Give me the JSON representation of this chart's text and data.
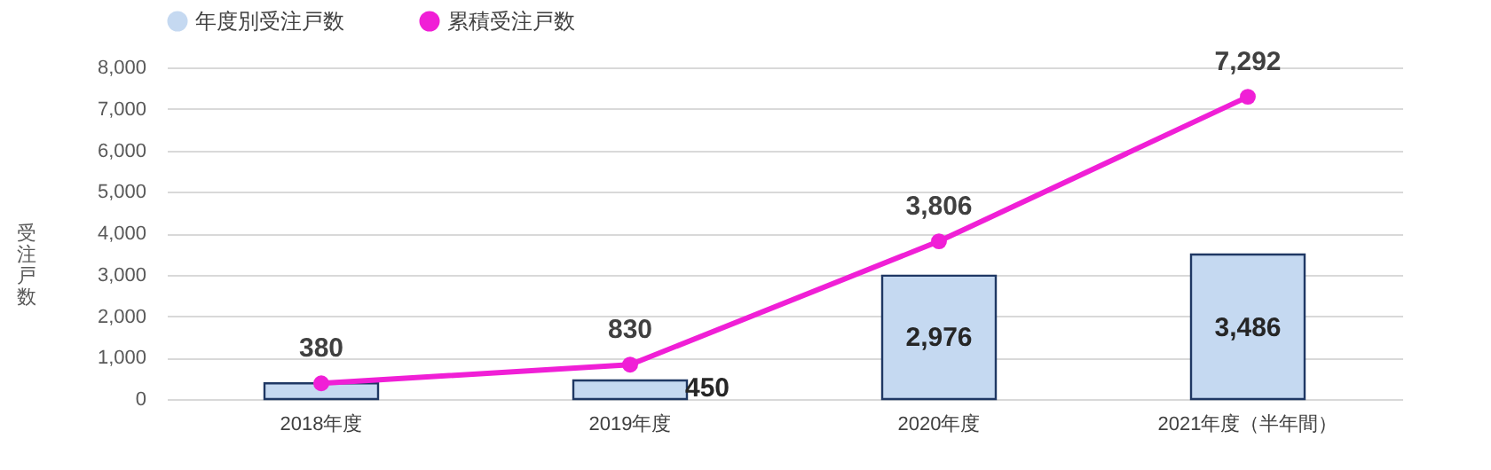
{
  "chart_data": {
    "type": "bar",
    "categories": [
      "2018年度",
      "2019年度",
      "2020年度",
      "2021年度（半年間）"
    ],
    "ylabel": "受注戸数",
    "series": [
      {
        "name": "年度別受注戸数",
        "type": "bar",
        "color": "#c5d9f1",
        "values": [
          380,
          450,
          2976,
          3486
        ],
        "value_labels": [
          null,
          "450",
          "2,976",
          "3,486"
        ]
      },
      {
        "name": "累積受注戸数",
        "type": "line",
        "color": "#f01fd6",
        "values": [
          380,
          830,
          3806,
          7292
        ],
        "value_labels": [
          "380",
          "830",
          "3,806",
          "7,292"
        ]
      }
    ],
    "ylim": [
      0,
      8000
    ],
    "yticks": [
      {
        "value": 0,
        "label": "0"
      },
      {
        "value": 1000,
        "label": "1,000"
      },
      {
        "value": 2000,
        "label": "2,000"
      },
      {
        "value": 3000,
        "label": "3,000"
      },
      {
        "value": 4000,
        "label": "4,000"
      },
      {
        "value": 5000,
        "label": "5,000"
      },
      {
        "value": 6000,
        "label": "6,000"
      },
      {
        "value": 7000,
        "label": "7,000"
      },
      {
        "value": 8000,
        "label": "8,000"
      }
    ],
    "grid": "y",
    "legend": "top",
    "marker": "circle",
    "line_style": "solid"
  }
}
